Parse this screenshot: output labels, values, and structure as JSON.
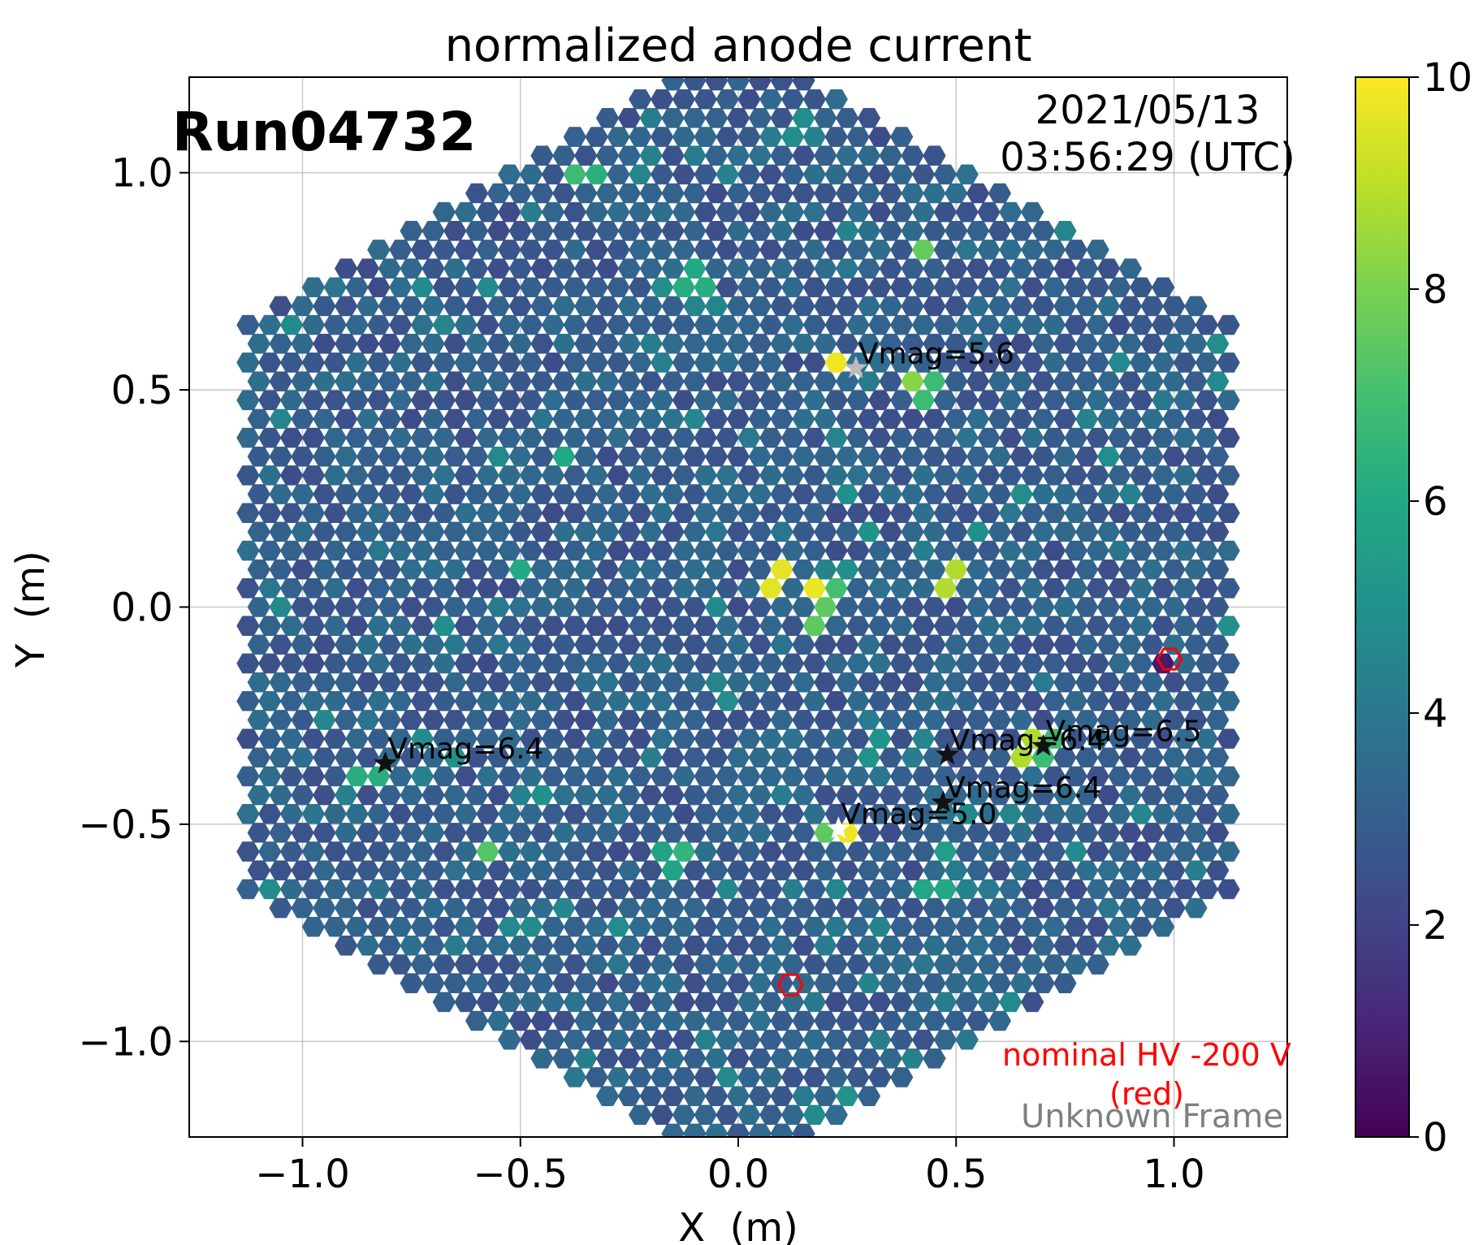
{
  "chart_data": {
    "type": "heatmap",
    "title": "normalized anode current",
    "xlabel": "X  (m)",
    "ylabel": "Y  (m)",
    "xlim": [
      -1.26,
      1.26
    ],
    "ylim": [
      -1.22,
      1.22
    ],
    "grid": true,
    "x_ticks": [
      {
        "value": -1.0,
        "label": "−1.0"
      },
      {
        "value": -0.5,
        "label": "−0.5"
      },
      {
        "value": 0.0,
        "label": "0.0"
      },
      {
        "value": 0.5,
        "label": "0.5"
      },
      {
        "value": 1.0,
        "label": "1.0"
      }
    ],
    "y_ticks": [
      {
        "value": 1.0,
        "label": "1.0"
      },
      {
        "value": 0.5,
        "label": "0.5"
      },
      {
        "value": 0.0,
        "label": "0.0"
      },
      {
        "value": -0.5,
        "label": "−0.5"
      },
      {
        "value": -1.0,
        "label": "−1.0"
      }
    ],
    "run_label": "Run04732",
    "date_line": "2021/05/13",
    "time_line": "03:56:29 (UTC)",
    "hv_note_line1": "nominal HV -200 V",
    "hv_note_line2": "(red)",
    "frame_label": "Unknown Frame",
    "colorbar": {
      "min": 0,
      "max": 10,
      "colormap": "viridis",
      "ticks": [
        {
          "value": 0,
          "label": "0"
        },
        {
          "value": 2,
          "label": "2"
        },
        {
          "value": 4,
          "label": "4"
        },
        {
          "value": 6,
          "label": "6"
        },
        {
          "value": 8,
          "label": "8"
        },
        {
          "value": 10,
          "label": "10"
        }
      ]
    },
    "camera": {
      "pixel_pitch_m": 0.05,
      "camera_flat_to_flat_m": 2.28,
      "baseline_value": 3.0
    },
    "hot_pixels": [
      {
        "x": 0.24,
        "y": 0.56,
        "value": 9.8
      },
      {
        "x": 0.39,
        "y": 0.51,
        "value": 8.2
      },
      {
        "x": 0.44,
        "y": 0.5,
        "value": 6.8
      },
      {
        "x": 0.08,
        "y": 0.07,
        "value": 9.6
      },
      {
        "x": 0.17,
        "y": 0.03,
        "value": 9.7
      },
      {
        "x": 0.22,
        "y": 0.02,
        "value": 7.0
      },
      {
        "x": 0.18,
        "y": -0.02,
        "value": 7.5
      },
      {
        "x": 0.48,
        "y": 0.07,
        "value": 8.8
      },
      {
        "x": 0.41,
        "y": 0.82,
        "value": 7.6
      },
      {
        "x": -0.37,
        "y": 0.99,
        "value": 6.8
      },
      {
        "x": -0.32,
        "y": 0.98,
        "value": 6.3
      },
      {
        "x": -0.4,
        "y": 0.33,
        "value": 6.3
      },
      {
        "x": -0.38,
        "y": 0.36,
        "value": 6.0
      },
      {
        "x": -0.5,
        "y": 0.09,
        "value": 6.0
      },
      {
        "x": 0.24,
        "y": -0.53,
        "value": 9.8
      },
      {
        "x": 0.19,
        "y": -0.52,
        "value": 7.5
      },
      {
        "x": -0.59,
        "y": -0.57,
        "value": 7.3
      },
      {
        "x": -0.85,
        "y": -0.38,
        "value": 6.2
      },
      {
        "x": 0.72,
        "y": -0.33,
        "value": 6.8
      },
      {
        "x": 0.67,
        "y": -0.33,
        "value": 8.8
      },
      {
        "x": -0.12,
        "y": -0.55,
        "value": 6.5
      },
      {
        "x": -0.16,
        "y": -0.58,
        "value": 5.8
      },
      {
        "x": -0.1,
        "y": 0.73,
        "value": 6.2
      },
      {
        "x": -0.1,
        "y": 0.77,
        "value": 6.0
      },
      {
        "x": 0.45,
        "y": -0.65,
        "value": 5.9
      },
      {
        "x": 0.47,
        "y": -0.57,
        "value": 5.5
      },
      {
        "x": 0.99,
        "y": -0.12,
        "value": 0.7
      },
      {
        "x": 0.12,
        "y": -0.87,
        "value": 2.8
      }
    ],
    "red_ring_pixels": [
      {
        "x": 0.99,
        "y": -0.12
      },
      {
        "x": 0.12,
        "y": -0.87
      }
    ],
    "stars": [
      {
        "x": 0.27,
        "y": 0.55,
        "label": "Vmag=5.6",
        "color": "#bbbbbb"
      },
      {
        "x": -0.81,
        "y": -0.36,
        "label": "Vmag=6.4",
        "color": "#111111"
      },
      {
        "x": 0.48,
        "y": -0.34,
        "label": "Vmag=6.4",
        "color": "#111111"
      },
      {
        "x": 0.7,
        "y": -0.32,
        "label": "Vmag=6.5",
        "color": "#111111"
      },
      {
        "x": 0.47,
        "y": -0.45,
        "label": "Vmag=6.4",
        "color": "#111111"
      },
      {
        "x": 0.23,
        "y": -0.51,
        "label": "Vmag=5.0",
        "color": "#ffffff"
      }
    ]
  }
}
